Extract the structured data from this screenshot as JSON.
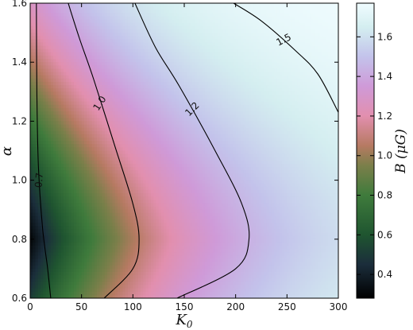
{
  "chart_data": {
    "type": "heatmap",
    "title": "",
    "xlabel": "K",
    "xlabel_sub": "0",
    "ylabel": "α",
    "xlim": [
      0,
      300
    ],
    "ylim": [
      0.6,
      1.6
    ],
    "xticks": [
      "0",
      "50",
      "100",
      "150",
      "200",
      "250",
      "300"
    ],
    "yticks": [
      "0.6",
      "0.8",
      "1.0",
      "1.2",
      "1.4",
      "1.6"
    ],
    "grid": false,
    "colorbar": {
      "label": "B (μG)",
      "range": [
        0.28,
        1.77
      ],
      "ticks": [
        "0.4",
        "0.6",
        "0.8",
        "1.0",
        "1.2",
        "1.4",
        "1.6"
      ],
      "colors": [
        {
          "value": 0.28,
          "color": "#000000"
        },
        {
          "value": 0.45,
          "color": "#1b2d3b"
        },
        {
          "value": 0.6,
          "color": "#1f5530"
        },
        {
          "value": 0.8,
          "color": "#3f7b3c"
        },
        {
          "value": 0.95,
          "color": "#7b7f4a"
        },
        {
          "value": 1.05,
          "color": "#b67a62"
        },
        {
          "value": 1.2,
          "color": "#e28fae"
        },
        {
          "value": 1.35,
          "color": "#cf9ad8"
        },
        {
          "value": 1.5,
          "color": "#c3c3eb"
        },
        {
          "value": 1.65,
          "color": "#d4eef0"
        },
        {
          "value": 1.77,
          "color": "#f0fcff"
        }
      ]
    },
    "contours": [
      {
        "level": "0.7",
        "points": [
          [
            6,
            1.6
          ],
          [
            6.5,
            1.3
          ],
          [
            8,
            1.05
          ],
          [
            12,
            0.84
          ],
          [
            17,
            0.7
          ],
          [
            20,
            0.6
          ]
        ]
      },
      {
        "level": "1.0",
        "points": [
          [
            37,
            1.6
          ],
          [
            48,
            1.48
          ],
          [
            62,
            1.34
          ],
          [
            82,
            1.12
          ],
          [
            100,
            0.92
          ],
          [
            106,
            0.8
          ],
          [
            100,
            0.7
          ],
          [
            72,
            0.6
          ]
        ]
      },
      {
        "level": "1.2",
        "points": [
          [
            102,
            1.6
          ],
          [
            122,
            1.45
          ],
          [
            145,
            1.32
          ],
          [
            180,
            1.1
          ],
          [
            206,
            0.92
          ],
          [
            213,
            0.8
          ],
          [
            200,
            0.7
          ],
          [
            143,
            0.6
          ]
        ]
      },
      {
        "level": "1.5",
        "points": [
          [
            198,
            1.6
          ],
          [
            225,
            1.54
          ],
          [
            258,
            1.44
          ],
          [
            280,
            1.36
          ],
          [
            300,
            1.23
          ]
        ]
      }
    ],
    "contour_labels": [
      {
        "text": "0.7",
        "x": 9,
        "y": 1.0,
        "angle": -85
      },
      {
        "text": "1.0",
        "x": 68,
        "y": 1.26,
        "angle": -57
      },
      {
        "text": "1.2",
        "x": 158,
        "y": 1.24,
        "angle": -45
      },
      {
        "text": "1.5",
        "x": 247,
        "y": 1.475,
        "angle": -27
      }
    ]
  }
}
